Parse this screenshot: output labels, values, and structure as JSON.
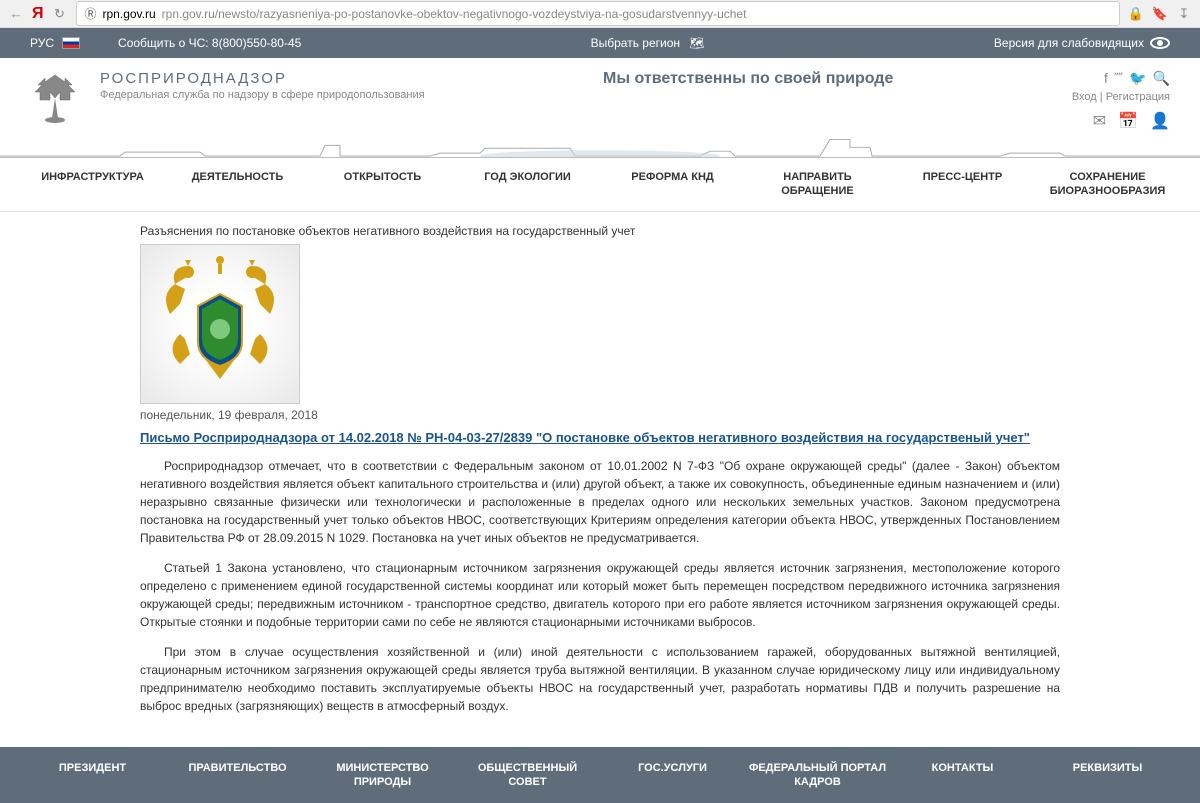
{
  "browser": {
    "host": "rpn.gov.ru",
    "path": "rpn.gov.ru/newsto/razyasneniya-po-postanovke-obektov-negativnogo-vozdeystviya-na-gosudarstvennyy-uchet"
  },
  "topbar": {
    "lang": "РУС",
    "emergency": "Сообщить о ЧС: 8(800)550-80-45",
    "region": "Выбрать регион",
    "accessibility": "Версия для слабовидящих"
  },
  "header": {
    "title": "РОСПРИРОДНАДЗОР",
    "subtitle": "Федеральная служба по надзору в сфере природопользования",
    "slogan": "Мы ответственны по своей природе",
    "login": "Вход",
    "register": "Регистрация"
  },
  "mainnav": [
    "ИНФРАСТРУКТУРА",
    "ДЕЯТЕЛЬНОСТЬ",
    "ОТКРЫТОСТЬ",
    "ГОД ЭКОЛОГИИ",
    "РЕФОРМА КНД",
    "НАПРАВИТЬ ОБРАЩЕНИЕ",
    "ПРЕСС-ЦЕНТР",
    "СОХРАНЕНИЕ БИОРАЗНООБРАЗИЯ"
  ],
  "article": {
    "title": "Разъяснения по постановке объектов негативного воздействия на государственный учет",
    "date": "понедельник, 19 февраля, 2018",
    "link": "Письмо Росприроднадзора от 14.02.2018 № РН-04-03-27/2839 \"О постановке объектов негативного воздействия на государственый учет\"",
    "p1": "Росприроднадзор отмечает, что в соответствии с Федеральным законом от 10.01.2002 N 7-ФЗ \"Об охране окружающей среды\" (далее - Закон) объектом негативного воздействия является объект капитального строительства и (или) другой объект, а также их совокупность, объединенные единым назначением и (или) неразрывно связанные физически или технологически и расположенные в пределах одного или нескольких земельных участков. Законом предусмотрена постановка на государственный учет только объектов НВОС, соответствующих Критериям определения категории объекта НВОС, утвержденных Постановлением Правительства РФ от 28.09.2015 N 1029. Постановка на учет иных объектов не предусматривается.",
    "p2": "Статьей 1 Закона установлено, что стационарным источником загрязнения окружающей среды является источник загрязнения, местоположение которого определено с применением единой государственной системы координат или который может быть перемещен посредством передвижного источника загрязнения окружающей среды; передвижным источником - транспортное средство, двигатель которого при его работе является источником загрязнения окружающей среды. Открытые стоянки и подобные территории сами по себе не являются стационарными источниками выбросов.",
    "p3": "При этом в случае осуществления хозяйственной и (или) иной деятельности с использованием гаражей, оборудованных вытяжной вентиляцией, стационарным источником загрязнения окружающей среды является труба вытяжной вентиляции. В указанном случае юридическому лицу или индивидуальному предпринимателю необходимо поставить эксплуатируемые объекты НВОС на государственный учет, разработать нормативы ПДВ и получить разрешение на выброс вредных (загрязняющих) веществ в атмосферный воздух."
  },
  "footernav": [
    "ПРЕЗИДЕНТ",
    "ПРАВИТЕЛЬСТВО",
    "МИНИСТЕРСТВО ПРИРОДЫ",
    "ОБЩЕСТВЕННЫЙ СОВЕТ",
    "ГОС.УСЛУГИ",
    "ФЕДЕРАЛЬНЫЙ ПОРТАЛ КАДРОВ",
    "КОНТАКТЫ",
    "РЕКВИЗИТЫ"
  ],
  "colors": {
    "topbar_bg": "#5f6d7b",
    "link_blue": "#1a5490",
    "text_gray": "#888"
  }
}
